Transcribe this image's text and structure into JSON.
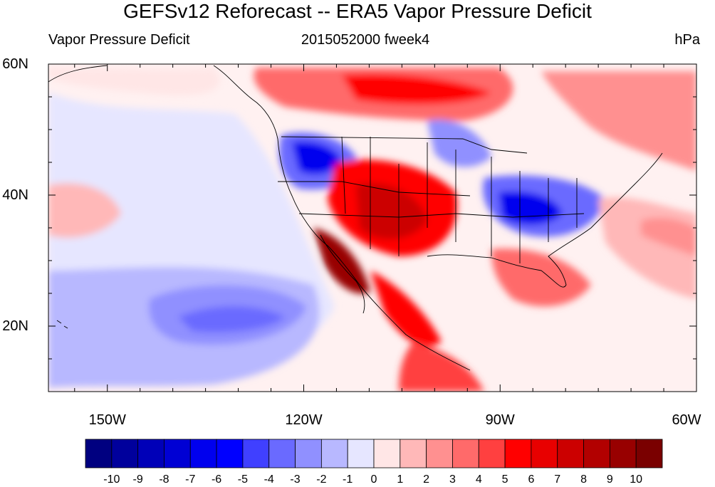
{
  "header": {
    "title": "GEFSv12 Reforecast -- ERA5 Vapor Pressure Deficit",
    "left_label": "Vapor Pressure Deficit",
    "center_label": "2015052000 fweek4",
    "right_label": "hPa"
  },
  "map": {
    "projection": "cylindrical-equidistant",
    "lon_range": [
      -159,
      -60
    ],
    "lat_range": [
      10,
      60
    ],
    "lat_ticks": [
      {
        "value": 60,
        "label": "60N"
      },
      {
        "value": 40,
        "label": "40N"
      },
      {
        "value": 20,
        "label": "20N"
      }
    ],
    "lon_ticks": [
      {
        "value": -150,
        "label": "150W"
      },
      {
        "value": -120,
        "label": "120W"
      },
      {
        "value": -90,
        "label": "90W"
      },
      {
        "value": -60,
        "label": "60W"
      }
    ],
    "boundaries": "continental outlines and US state borders"
  },
  "colorbar": {
    "labels": [
      "-10",
      "-9",
      "-8",
      "-7",
      "-6",
      "-5",
      "-4",
      "-3",
      "-2",
      "-1",
      "0",
      "1",
      "2",
      "3",
      "4",
      "5",
      "6",
      "7",
      "8",
      "9",
      "10"
    ],
    "colors": [
      "#000080",
      "#00009c",
      "#0000b8",
      "#0000d4",
      "#0000ee",
      "#0000ff",
      "#4040ff",
      "#6a6aff",
      "#9090ff",
      "#b8b8ff",
      "#e6e6ff",
      "#ffe6e6",
      "#ffb8b8",
      "#ff9090",
      "#ff6a6a",
      "#ff4040",
      "#ff0000",
      "#e80000",
      "#cc0000",
      "#b20000",
      "#980000",
      "#7a0000"
    ]
  }
}
